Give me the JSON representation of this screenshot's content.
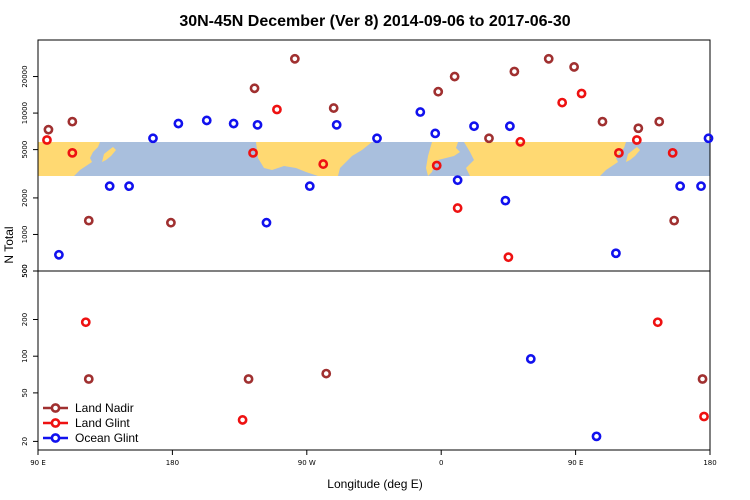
{
  "chart_data": {
    "type": "scatter",
    "title": "30N-45N December (Ver 8)   2014-09-06 to 2017-06-30",
    "xlabel": "Longitude (deg E)",
    "ylabel": "N Total",
    "x_ticks": [
      {
        "value": 90,
        "label": "90 E"
      },
      {
        "value": 180,
        "label": "180"
      },
      {
        "value": 270,
        "label": "90 W"
      },
      {
        "value": 360,
        "label": "0"
      },
      {
        "value": 450,
        "label": "90 E"
      },
      {
        "value": 540,
        "label": "180"
      }
    ],
    "xlim": [
      90,
      540
    ],
    "upper_panel": {
      "scale": "log",
      "ylim": [
        500,
        40000
      ],
      "y_ticks": [
        "500",
        "1000",
        "2000",
        "5000",
        "10000",
        "20000"
      ],
      "map_band": "world map (longitude 90E to 180, latitude 30N-45N)"
    },
    "lower_panel": {
      "scale": "log",
      "ylim": [
        17,
        500
      ],
      "y_ticks": [
        "20",
        "50",
        "100",
        "200",
        "500"
      ]
    },
    "series": [
      {
        "name": "Land Nadir",
        "color": "#a03030",
        "upper": [
          [
            97,
            7300
          ],
          [
            113,
            8500
          ],
          [
            124,
            1300
          ],
          [
            179,
            1250
          ],
          [
            235,
            16000
          ],
          [
            262,
            28000
          ],
          [
            288,
            11000
          ],
          [
            358,
            15000
          ],
          [
            369,
            20000
          ],
          [
            392,
            6200
          ],
          [
            409,
            22000
          ],
          [
            432,
            28000
          ],
          [
            449,
            24000
          ],
          [
            468,
            8500
          ],
          [
            492,
            7500
          ],
          [
            506,
            8500
          ],
          [
            516,
            1300
          ]
        ],
        "lower": [
          [
            124,
            65
          ],
          [
            231,
            65
          ],
          [
            283,
            72
          ],
          [
            535,
            65
          ]
        ]
      },
      {
        "name": "Land Glint",
        "color": "#ee1111",
        "upper": [
          [
            96,
            6000
          ],
          [
            113,
            4700
          ],
          [
            234,
            4700
          ],
          [
            250,
            10700
          ],
          [
            281,
            3800
          ],
          [
            357,
            3700
          ],
          [
            371,
            1650
          ],
          [
            405,
            650
          ],
          [
            413,
            5800
          ],
          [
            441,
            12200
          ],
          [
            454,
            14500
          ],
          [
            479,
            4700
          ],
          [
            491,
            6000
          ],
          [
            515,
            4700
          ]
        ],
        "lower": [
          [
            122,
            190
          ],
          [
            227,
            30
          ],
          [
            505,
            190
          ],
          [
            536,
            32
          ]
        ]
      },
      {
        "name": "Ocean Glint",
        "color": "#1111ee",
        "upper": [
          [
            104,
            680
          ],
          [
            138,
            2500
          ],
          [
            151,
            2500
          ],
          [
            167,
            6200
          ],
          [
            184,
            8200
          ],
          [
            203,
            8700
          ],
          [
            221,
            8200
          ],
          [
            237,
            8000
          ],
          [
            243,
            1250
          ],
          [
            272,
            2500
          ],
          [
            290,
            8000
          ],
          [
            317,
            6200
          ],
          [
            346,
            10200
          ],
          [
            356,
            6800
          ],
          [
            382,
            7800
          ],
          [
            406,
            7800
          ],
          [
            371,
            2800
          ],
          [
            403,
            1900
          ],
          [
            477,
            700
          ],
          [
            520,
            2500
          ],
          [
            534,
            2500
          ],
          [
            539,
            6200
          ]
        ],
        "lower": [
          [
            420,
            95
          ],
          [
            464,
            22
          ]
        ]
      }
    ],
    "legend": {
      "position": "bottom-left",
      "entries": [
        "Land Nadir",
        "Land Glint",
        "Ocean Glint"
      ]
    }
  }
}
